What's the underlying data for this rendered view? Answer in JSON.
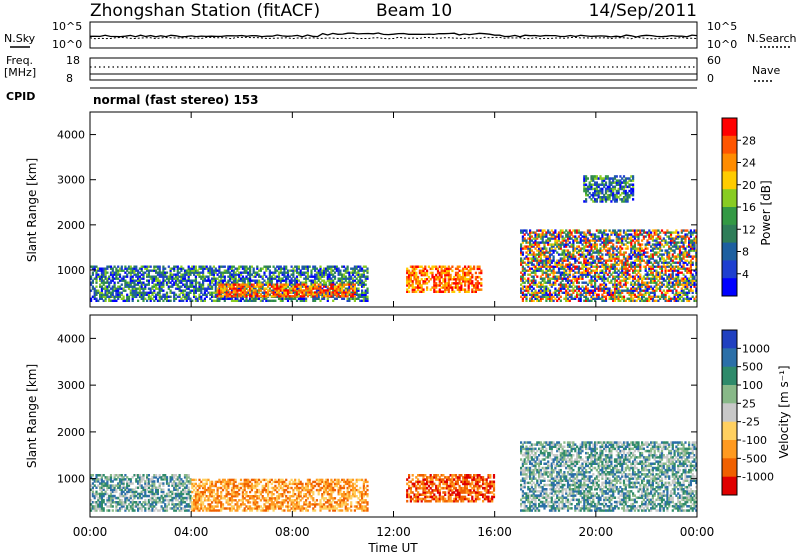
{
  "header": {
    "station": "Zhongshan Station (fitACF)",
    "beam": "Beam 10",
    "date": "14/Sep/2011"
  },
  "sky_panel": {
    "left_label": "N.Sky",
    "right_label": "N.Search",
    "ticks_left": [
      "10^5",
      "10^0"
    ],
    "ticks_right": [
      "10^5",
      "10^0"
    ]
  },
  "freq_panel": {
    "left_label_line1": "Freq.",
    "left_label_line2": "[MHz]",
    "ticks_left": [
      "18",
      "8"
    ],
    "right_label": "Nave",
    "ticks_right": [
      "60",
      "0"
    ]
  },
  "cpid": {
    "label": "CPID",
    "program": "normal (fast stereo) 153"
  },
  "chart_data": [
    {
      "type": "heatmap",
      "title": "",
      "ylabel": "Slant Range [km]",
      "xlabel": "",
      "ylim": [
        180,
        4500
      ],
      "yticks": [
        "4000",
        "3000",
        "2000",
        "1000"
      ],
      "x_ticks": [
        "00:00",
        "04:00",
        "08:00",
        "12:00",
        "16:00",
        "20:00",
        "00:00"
      ],
      "colorbar": {
        "label": "Power [dB]",
        "ticks": [
          "28",
          "24",
          "20",
          "16",
          "12",
          "8",
          "4"
        ],
        "colors": [
          "#ff0000",
          "#ff5500",
          "#ff8c00",
          "#ffcc00",
          "#88cc22",
          "#339944",
          "#2e7d58",
          "#1d5fa0",
          "#1e3fd0",
          "#0000ff"
        ]
      },
      "echo_regions": [
        {
          "t_start": 0.0,
          "t_end": 11.0,
          "r_min": 300,
          "r_max": 1100,
          "value": "low power"
        },
        {
          "t_start": 5.0,
          "t_end": 10.5,
          "r_min": 400,
          "r_max": 700,
          "value": "high power"
        },
        {
          "t_start": 12.5,
          "t_end": 15.5,
          "r_min": 500,
          "r_max": 1100,
          "value": "high power"
        },
        {
          "t_start": 17.0,
          "t_end": 24.0,
          "r_min": 300,
          "r_max": 1900,
          "value": "mixed"
        },
        {
          "t_start": 19.5,
          "t_end": 21.5,
          "r_min": 2500,
          "r_max": 3100,
          "value": "low power"
        }
      ]
    },
    {
      "type": "heatmap",
      "title": "",
      "ylabel": "Slant Range [km]",
      "xlabel": "Time UT",
      "ylim": [
        180,
        4500
      ],
      "yticks": [
        "4000",
        "3000",
        "2000",
        "1000"
      ],
      "x_ticks": [
        "00:00",
        "04:00",
        "08:00",
        "12:00",
        "16:00",
        "20:00",
        "00:00"
      ],
      "colorbar": {
        "label": "Velocity [m s⁻¹]",
        "ticks": [
          "1000",
          "500",
          "100",
          "25",
          "-25",
          "-100",
          "-500",
          "-1000"
        ],
        "colors": [
          "#2040c0",
          "#2b6fa8",
          "#2e8a6a",
          "#88b888",
          "#c8c8c8",
          "#ffd060",
          "#ff9a20",
          "#f06000",
          "#e00000"
        ]
      },
      "echo_regions": [
        {
          "t_start": 0.0,
          "t_end": 4.0,
          "r_min": 300,
          "r_max": 1100,
          "value": "~ +100"
        },
        {
          "t_start": 4.0,
          "t_end": 11.0,
          "r_min": 300,
          "r_max": 1000,
          "value": "~ -100"
        },
        {
          "t_start": 12.5,
          "t_end": 16.0,
          "r_min": 500,
          "r_max": 1100,
          "value": "~ -500"
        },
        {
          "t_start": 17.0,
          "t_end": 24.0,
          "r_min": 300,
          "r_max": 1800,
          "value": "~ +100"
        }
      ]
    }
  ]
}
